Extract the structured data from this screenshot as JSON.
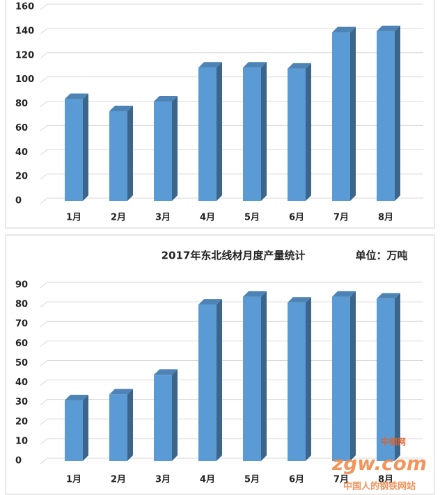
{
  "chart_data": [
    {
      "type": "bar3d",
      "categories": [
        "1月",
        "2月",
        "3月",
        "4月",
        "5月",
        "6月",
        "7月",
        "8月"
      ],
      "values": [
        84,
        74,
        82,
        110,
        110,
        109,
        139,
        140
      ],
      "color": "#5b9bd5",
      "ylim": [
        0,
        160
      ],
      "yticks": [
        0,
        20,
        40,
        60,
        80,
        100,
        120,
        140,
        160
      ],
      "grid": true
    },
    {
      "type": "bar3d",
      "title": "2017年东北线材月度产量统计",
      "annotation": "单位：万吨",
      "categories": [
        "1月",
        "2月",
        "3月",
        "4月",
        "5月",
        "6月",
        "7月",
        "8月"
      ],
      "values": [
        31,
        34,
        44,
        80,
        84,
        81,
        84,
        83
      ],
      "color": "#5b9bd5",
      "ylim": [
        0,
        90
      ],
      "yticks": [
        0,
        10,
        20,
        30,
        40,
        50,
        60,
        70,
        80,
        90
      ],
      "grid": true
    }
  ],
  "watermark": {
    "badge": "中钢网",
    "logo": "zgw.com",
    "slogan": "中国人的钢铁网站"
  }
}
